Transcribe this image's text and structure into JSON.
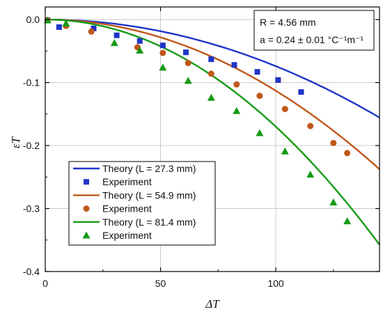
{
  "chart_data": {
    "type": "line",
    "xlabel": "ΔT",
    "ylabel": "εT",
    "xlim": [
      0,
      145
    ],
    "ylim": [
      -0.4,
      0.02
    ],
    "grid": true,
    "x_ticks": [
      0,
      50,
      100
    ],
    "y_ticks": [
      0.0,
      -0.1,
      -0.2,
      -0.3,
      -0.4
    ],
    "x_tick_labels": [
      "0",
      "50",
      "100"
    ],
    "y_tick_labels": [
      "0.0",
      "-0.1",
      "-0.2",
      "-0.3",
      "-0.4"
    ],
    "annotation": {
      "line1": "R = 4.56 mm",
      "line2": "a = 0.24 ± 0.01 °C⁻¹m⁻¹",
      "placement": "top-right"
    },
    "legend_placement": "lower-left",
    "series": [
      {
        "kind": "theory",
        "label": "Theory (L = 27.3 mm)",
        "color": "#1f35c8",
        "marker": "square",
        "curve_coeff": 7.4e-06,
        "experiment_label": "Experiment",
        "experiment_x": [
          1,
          6,
          21,
          31,
          41,
          51,
          61,
          72,
          82,
          92,
          101,
          111
        ],
        "experiment_y": [
          -0.001,
          -0.012,
          -0.014,
          -0.025,
          -0.034,
          -0.041,
          -0.052,
          -0.063,
          -0.072,
          -0.083,
          -0.096,
          -0.115
        ]
      },
      {
        "kind": "theory",
        "label": "Theory (L = 54.9 mm)",
        "color": "#c0571a",
        "marker": "circle",
        "curve_coeff": 1.13e-05,
        "experiment_label": "Experiment",
        "experiment_x": [
          1,
          9,
          20,
          40,
          51,
          62,
          72,
          83,
          93,
          104,
          115,
          125,
          131
        ],
        "experiment_y": [
          -0.001,
          -0.01,
          -0.019,
          -0.044,
          -0.053,
          -0.069,
          -0.086,
          -0.103,
          -0.121,
          -0.142,
          -0.169,
          -0.196,
          -0.212
        ]
      },
      {
        "kind": "theory",
        "label": "Theory (L = 81.4 mm)",
        "color": "#169a16",
        "marker": "triangle",
        "curve_coeff": 1.7e-05,
        "experiment_label": "Experiment",
        "experiment_x": [
          1,
          9,
          30,
          41,
          51,
          62,
          72,
          83,
          93,
          104,
          115,
          125,
          131
        ],
        "experiment_y": [
          -0.001,
          -0.006,
          -0.037,
          -0.049,
          -0.076,
          -0.097,
          -0.124,
          -0.145,
          -0.18,
          -0.209,
          -0.246,
          -0.29,
          -0.32
        ]
      }
    ]
  }
}
